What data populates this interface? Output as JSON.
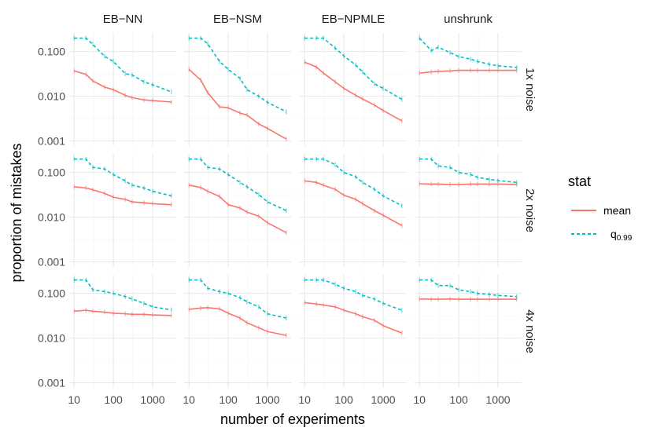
{
  "chart_data": {
    "type": "line",
    "layout": "facet-grid 3 rows x 4 columns",
    "xlabel": "number of experiments",
    "ylabel": "proportion of mistakes",
    "x_scale": "log10",
    "y_scale": "log10",
    "xlim": [
      10,
      3000
    ],
    "ylim": [
      0.001,
      0.2
    ],
    "x_ticks": [
      10,
      100,
      1000
    ],
    "x_tick_labels": [
      "10",
      "100",
      "1000"
    ],
    "y_ticks": [
      0.001,
      0.01,
      0.1
    ],
    "y_tick_labels": [
      "0.001",
      "0.010",
      "0.100"
    ],
    "grid": true,
    "column_facets": [
      "EB−NN",
      "EB−NSM",
      "EB−NPMLE",
      "unshrunk"
    ],
    "row_facets": [
      "1x noise",
      "2x noise",
      "4x noise"
    ],
    "legend": {
      "title": "stat",
      "placement": "right",
      "entries": [
        {
          "key": "mean",
          "label": "mean",
          "color": "#F8766D",
          "linestyle": "solid"
        },
        {
          "key": "q",
          "label_main": "q",
          "label_sub": "0.99",
          "color": "#00BFC4",
          "linestyle": "dashed"
        }
      ]
    },
    "x": [
      10,
      20,
      30,
      60,
      100,
      200,
      300,
      600,
      1000,
      3000
    ],
    "panels": [
      {
        "row": 0,
        "col": 0,
        "mean": [
          0.037,
          0.031,
          0.022,
          0.016,
          0.014,
          0.0105,
          0.0093,
          0.0083,
          0.008,
          0.0074
        ],
        "q": [
          0.2,
          0.2,
          0.145,
          0.078,
          0.06,
          0.032,
          0.03,
          0.021,
          0.018,
          0.0125
        ]
      },
      {
        "row": 0,
        "col": 1,
        "mean": [
          0.04,
          0.023,
          0.012,
          0.0058,
          0.0055,
          0.0042,
          0.0038,
          0.0024,
          0.0019,
          0.0011
        ],
        "q": [
          0.2,
          0.2,
          0.15,
          0.06,
          0.04,
          0.025,
          0.014,
          0.01,
          0.0073,
          0.0045
        ]
      },
      {
        "row": 0,
        "col": 2,
        "mean": [
          0.058,
          0.045,
          0.033,
          0.021,
          0.015,
          0.0105,
          0.0087,
          0.0063,
          0.0048,
          0.0028
        ],
        "q": [
          0.2,
          0.2,
          0.2,
          0.12,
          0.08,
          0.05,
          0.035,
          0.019,
          0.015,
          0.0085
        ]
      },
      {
        "row": 0,
        "col": 3,
        "mean": [
          0.033,
          0.035,
          0.036,
          0.037,
          0.038,
          0.038,
          0.038,
          0.038,
          0.038,
          0.038
        ],
        "q": [
          0.2,
          0.105,
          0.125,
          0.095,
          0.077,
          0.068,
          0.06,
          0.052,
          0.048,
          0.044
        ]
      },
      {
        "row": 1,
        "col": 0,
        "mean": [
          0.048,
          0.045,
          0.041,
          0.034,
          0.028,
          0.025,
          0.022,
          0.021,
          0.02,
          0.019
        ],
        "q": [
          0.2,
          0.2,
          0.13,
          0.12,
          0.09,
          0.065,
          0.052,
          0.045,
          0.038,
          0.03
        ]
      },
      {
        "row": 1,
        "col": 1,
        "mean": [
          0.052,
          0.046,
          0.038,
          0.029,
          0.019,
          0.016,
          0.013,
          0.0105,
          0.0075,
          0.0045
        ],
        "q": [
          0.2,
          0.2,
          0.13,
          0.12,
          0.09,
          0.06,
          0.048,
          0.032,
          0.022,
          0.014
        ]
      },
      {
        "row": 1,
        "col": 2,
        "mean": [
          0.065,
          0.06,
          0.052,
          0.042,
          0.031,
          0.025,
          0.02,
          0.014,
          0.011,
          0.0065
        ],
        "q": [
          0.2,
          0.2,
          0.2,
          0.15,
          0.1,
          0.08,
          0.06,
          0.042,
          0.03,
          0.018
        ]
      },
      {
        "row": 1,
        "col": 3,
        "mean": [
          0.056,
          0.055,
          0.055,
          0.054,
          0.054,
          0.055,
          0.055,
          0.055,
          0.055,
          0.054
        ],
        "q": [
          0.2,
          0.2,
          0.14,
          0.13,
          0.1,
          0.09,
          0.078,
          0.07,
          0.066,
          0.06
        ]
      },
      {
        "row": 2,
        "col": 0,
        "mean": [
          0.04,
          0.042,
          0.04,
          0.038,
          0.036,
          0.035,
          0.034,
          0.034,
          0.033,
          0.032
        ],
        "q": [
          0.2,
          0.2,
          0.12,
          0.11,
          0.1,
          0.085,
          0.075,
          0.06,
          0.05,
          0.043
        ]
      },
      {
        "row": 2,
        "col": 1,
        "mean": [
          0.044,
          0.047,
          0.048,
          0.045,
          0.036,
          0.028,
          0.022,
          0.017,
          0.014,
          0.0115
        ],
        "q": [
          0.2,
          0.2,
          0.13,
          0.11,
          0.1,
          0.08,
          0.065,
          0.05,
          0.035,
          0.028
        ]
      },
      {
        "row": 2,
        "col": 2,
        "mean": [
          0.062,
          0.058,
          0.055,
          0.05,
          0.042,
          0.035,
          0.03,
          0.025,
          0.019,
          0.013
        ],
        "q": [
          0.2,
          0.2,
          0.2,
          0.16,
          0.13,
          0.11,
          0.09,
          0.075,
          0.06,
          0.042
        ]
      },
      {
        "row": 2,
        "col": 3,
        "mean": [
          0.075,
          0.074,
          0.074,
          0.075,
          0.074,
          0.074,
          0.074,
          0.074,
          0.074,
          0.074
        ],
        "q": [
          0.2,
          0.2,
          0.15,
          0.15,
          0.12,
          0.11,
          0.1,
          0.095,
          0.09,
          0.085
        ]
      }
    ]
  }
}
